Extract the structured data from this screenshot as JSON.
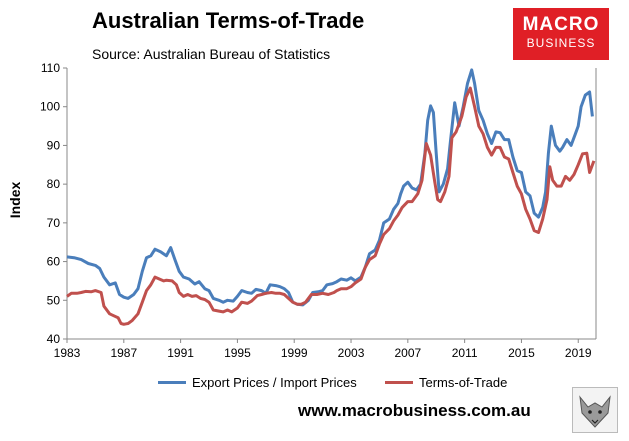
{
  "header": {
    "title": "Australian Terms-of-Trade",
    "subtitle": "Source: Australian Bureau of Statistics",
    "brand_line1": "MACRO",
    "brand_line2": "BUSINESS"
  },
  "footer": {
    "website": "www.macrobusiness.com.au"
  },
  "colors": {
    "export_import": "#4a7ebb",
    "terms_of_trade": "#c0504d",
    "brand": "#e01f26"
  },
  "chart_data": {
    "type": "line",
    "title": "Australian Terms-of-Trade",
    "xlabel": "",
    "ylabel": "Index",
    "xlim": [
      1983,
      2020.25
    ],
    "ylim": [
      40,
      110
    ],
    "yticks": [
      40,
      50,
      60,
      70,
      80,
      90,
      100,
      110
    ],
    "xticks": [
      1983,
      1987,
      1991,
      1995,
      1999,
      2003,
      2007,
      2011,
      2015,
      2019
    ],
    "grid": false,
    "legend": "bottom",
    "series": [
      {
        "name": "Export Prices / Import Prices",
        "color": "#4a7ebb",
        "points": [
          [
            1983.0,
            61.2
          ],
          [
            1983.5,
            61.0
          ],
          [
            1984.0,
            60.5
          ],
          [
            1984.5,
            59.5
          ],
          [
            1985.0,
            59.0
          ],
          [
            1985.3,
            58.2
          ],
          [
            1985.6,
            56.0
          ],
          [
            1986.0,
            54.0
          ],
          [
            1986.4,
            54.5
          ],
          [
            1986.7,
            51.5
          ],
          [
            1987.0,
            50.8
          ],
          [
            1987.3,
            50.5
          ],
          [
            1987.7,
            51.5
          ],
          [
            1988.0,
            53.0
          ],
          [
            1988.3,
            57.5
          ],
          [
            1988.6,
            61.0
          ],
          [
            1988.9,
            61.5
          ],
          [
            1989.2,
            63.2
          ],
          [
            1989.6,
            62.5
          ],
          [
            1990.0,
            61.5
          ],
          [
            1990.3,
            63.6
          ],
          [
            1990.6,
            60.5
          ],
          [
            1990.9,
            57.5
          ],
          [
            1991.2,
            56.0
          ],
          [
            1991.6,
            55.5
          ],
          [
            1992.0,
            54.2
          ],
          [
            1992.3,
            54.8
          ],
          [
            1992.7,
            53.0
          ],
          [
            1993.0,
            52.5
          ],
          [
            1993.3,
            50.5
          ],
          [
            1993.7,
            50.0
          ],
          [
            1994.0,
            49.5
          ],
          [
            1994.3,
            50.0
          ],
          [
            1994.7,
            49.8
          ],
          [
            1995.0,
            51.0
          ],
          [
            1995.3,
            52.5
          ],
          [
            1995.7,
            52.0
          ],
          [
            1996.0,
            51.8
          ],
          [
            1996.3,
            52.8
          ],
          [
            1996.7,
            52.5
          ],
          [
            1997.0,
            51.8
          ],
          [
            1997.3,
            54.0
          ],
          [
            1997.7,
            53.8
          ],
          [
            1998.0,
            53.5
          ],
          [
            1998.3,
            53.0
          ],
          [
            1998.6,
            52.0
          ],
          [
            1998.9,
            49.5
          ],
          [
            1999.2,
            49.0
          ],
          [
            1999.6,
            48.8
          ],
          [
            2000.0,
            50.0
          ],
          [
            2000.3,
            52.0
          ],
          [
            2000.7,
            52.2
          ],
          [
            2001.0,
            52.5
          ],
          [
            2001.3,
            54.0
          ],
          [
            2001.7,
            54.3
          ],
          [
            2002.0,
            54.8
          ],
          [
            2002.3,
            55.5
          ],
          [
            2002.7,
            55.2
          ],
          [
            2003.0,
            55.8
          ],
          [
            2003.3,
            55.0
          ],
          [
            2003.7,
            56.0
          ],
          [
            2004.0,
            58.5
          ],
          [
            2004.3,
            62.0
          ],
          [
            2004.7,
            63.0
          ],
          [
            2005.0,
            65.5
          ],
          [
            2005.3,
            70.0
          ],
          [
            2005.7,
            71.0
          ],
          [
            2006.0,
            73.5
          ],
          [
            2006.3,
            75.0
          ],
          [
            2006.5,
            77.5
          ],
          [
            2006.7,
            79.5
          ],
          [
            2007.0,
            80.5
          ],
          [
            2007.3,
            79.0
          ],
          [
            2007.6,
            78.5
          ],
          [
            2007.9,
            80.0
          ],
          [
            2008.2,
            88.0
          ],
          [
            2008.4,
            96.5
          ],
          [
            2008.6,
            100.2
          ],
          [
            2008.8,
            98.5
          ],
          [
            2009.0,
            88.0
          ],
          [
            2009.2,
            78.0
          ],
          [
            2009.5,
            80.0
          ],
          [
            2009.8,
            84.0
          ],
          [
            2010.0,
            91.0
          ],
          [
            2010.3,
            101.0
          ],
          [
            2010.6,
            95.0
          ],
          [
            2010.9,
            100.0
          ],
          [
            2011.2,
            106.0
          ],
          [
            2011.5,
            109.5
          ],
          [
            2011.7,
            106.0
          ],
          [
            2012.0,
            99.0
          ],
          [
            2012.3,
            96.5
          ],
          [
            2012.6,
            93.0
          ],
          [
            2012.9,
            90.5
          ],
          [
            2013.2,
            93.5
          ],
          [
            2013.5,
            93.3
          ],
          [
            2013.8,
            91.5
          ],
          [
            2014.1,
            91.5
          ],
          [
            2014.4,
            87.0
          ],
          [
            2014.7,
            83.5
          ],
          [
            2015.0,
            83.0
          ],
          [
            2015.3,
            78.0
          ],
          [
            2015.6,
            77.0
          ],
          [
            2015.9,
            72.5
          ],
          [
            2016.2,
            71.5
          ],
          [
            2016.5,
            74.0
          ],
          [
            2016.7,
            78.0
          ],
          [
            2016.9,
            88.0
          ],
          [
            2017.1,
            95.0
          ],
          [
            2017.4,
            90.0
          ],
          [
            2017.7,
            88.5
          ],
          [
            2017.9,
            89.5
          ],
          [
            2018.2,
            91.5
          ],
          [
            2018.5,
            90.0
          ],
          [
            2018.8,
            93.0
          ],
          [
            2019.0,
            95.0
          ],
          [
            2019.2,
            100.0
          ],
          [
            2019.5,
            103.0
          ],
          [
            2019.8,
            103.8
          ],
          [
            2020.0,
            97.5
          ]
        ]
      },
      {
        "name": "Terms-of-Trade",
        "color": "#c0504d",
        "points": [
          [
            1983.0,
            51.0
          ],
          [
            1983.3,
            51.8
          ],
          [
            1983.7,
            51.8
          ],
          [
            1984.0,
            52.0
          ],
          [
            1984.3,
            52.3
          ],
          [
            1984.7,
            52.2
          ],
          [
            1985.0,
            52.5
          ],
          [
            1985.4,
            52.0
          ],
          [
            1985.6,
            48.5
          ],
          [
            1986.0,
            46.5
          ],
          [
            1986.3,
            46.0
          ],
          [
            1986.6,
            45.5
          ],
          [
            1986.8,
            44.0
          ],
          [
            1987.0,
            43.8
          ],
          [
            1987.3,
            44.0
          ],
          [
            1987.6,
            44.8
          ],
          [
            1988.0,
            46.5
          ],
          [
            1988.3,
            49.5
          ],
          [
            1988.6,
            52.5
          ],
          [
            1988.9,
            54.0
          ],
          [
            1989.2,
            56.0
          ],
          [
            1989.5,
            55.5
          ],
          [
            1989.8,
            55.0
          ],
          [
            1990.0,
            55.2
          ],
          [
            1990.4,
            55.0
          ],
          [
            1990.7,
            54.0
          ],
          [
            1990.9,
            52.0
          ],
          [
            1991.2,
            51.0
          ],
          [
            1991.5,
            51.5
          ],
          [
            1991.8,
            51.0
          ],
          [
            1992.1,
            51.2
          ],
          [
            1992.4,
            50.5
          ],
          [
            1992.7,
            50.2
          ],
          [
            1993.0,
            49.5
          ],
          [
            1993.3,
            47.5
          ],
          [
            1993.7,
            47.2
          ],
          [
            1994.0,
            47.0
          ],
          [
            1994.3,
            47.5
          ],
          [
            1994.6,
            47.0
          ],
          [
            1995.0,
            48.0
          ],
          [
            1995.3,
            49.5
          ],
          [
            1995.7,
            49.2
          ],
          [
            1996.0,
            49.8
          ],
          [
            1996.4,
            51.2
          ],
          [
            1996.7,
            51.5
          ],
          [
            1997.0,
            51.8
          ],
          [
            1997.4,
            52.0
          ],
          [
            1997.7,
            51.8
          ],
          [
            1998.0,
            51.8
          ],
          [
            1998.3,
            51.5
          ],
          [
            1998.6,
            50.5
          ],
          [
            1998.9,
            49.5
          ],
          [
            1999.2,
            49.0
          ],
          [
            1999.5,
            49.0
          ],
          [
            1999.8,
            49.5
          ],
          [
            2000.2,
            51.5
          ],
          [
            2000.6,
            51.5
          ],
          [
            2001.0,
            51.8
          ],
          [
            2001.4,
            51.5
          ],
          [
            2001.8,
            52.0
          ],
          [
            2002.0,
            52.5
          ],
          [
            2002.3,
            53.0
          ],
          [
            2002.7,
            53.0
          ],
          [
            2003.0,
            53.5
          ],
          [
            2003.3,
            54.5
          ],
          [
            2003.7,
            55.5
          ],
          [
            2004.0,
            58.5
          ],
          [
            2004.3,
            60.5
          ],
          [
            2004.7,
            61.5
          ],
          [
            2005.0,
            64.5
          ],
          [
            2005.3,
            67.0
          ],
          [
            2005.7,
            68.5
          ],
          [
            2006.0,
            70.5
          ],
          [
            2006.3,
            72.0
          ],
          [
            2006.6,
            74.0
          ],
          [
            2007.0,
            75.5
          ],
          [
            2007.3,
            75.5
          ],
          [
            2007.7,
            77.5
          ],
          [
            2008.0,
            81.0
          ],
          [
            2008.3,
            90.5
          ],
          [
            2008.6,
            87.5
          ],
          [
            2008.9,
            80.5
          ],
          [
            2009.1,
            76.0
          ],
          [
            2009.3,
            75.5
          ],
          [
            2009.6,
            78.0
          ],
          [
            2009.9,
            82.0
          ],
          [
            2010.1,
            92.0
          ],
          [
            2010.4,
            93.5
          ],
          [
            2010.8,
            97.5
          ],
          [
            2011.1,
            102.5
          ],
          [
            2011.4,
            104.8
          ],
          [
            2011.7,
            100.0
          ],
          [
            2012.0,
            95.0
          ],
          [
            2012.3,
            93.0
          ],
          [
            2012.6,
            89.5
          ],
          [
            2012.9,
            87.5
          ],
          [
            2013.2,
            89.5
          ],
          [
            2013.5,
            89.5
          ],
          [
            2013.8,
            87.0
          ],
          [
            2014.1,
            86.5
          ],
          [
            2014.4,
            83.0
          ],
          [
            2014.7,
            79.5
          ],
          [
            2015.0,
            77.5
          ],
          [
            2015.3,
            73.5
          ],
          [
            2015.6,
            71.0
          ],
          [
            2015.9,
            68.0
          ],
          [
            2016.2,
            67.5
          ],
          [
            2016.5,
            71.0
          ],
          [
            2016.8,
            76.0
          ],
          [
            2017.0,
            84.5
          ],
          [
            2017.2,
            81.0
          ],
          [
            2017.5,
            79.5
          ],
          [
            2017.8,
            79.5
          ],
          [
            2018.1,
            82.0
          ],
          [
            2018.4,
            81.0
          ],
          [
            2018.7,
            82.5
          ],
          [
            2019.0,
            85.0
          ],
          [
            2019.3,
            87.8
          ],
          [
            2019.6,
            88.0
          ],
          [
            2019.8,
            83.0
          ],
          [
            2020.1,
            86.0
          ]
        ]
      }
    ]
  }
}
